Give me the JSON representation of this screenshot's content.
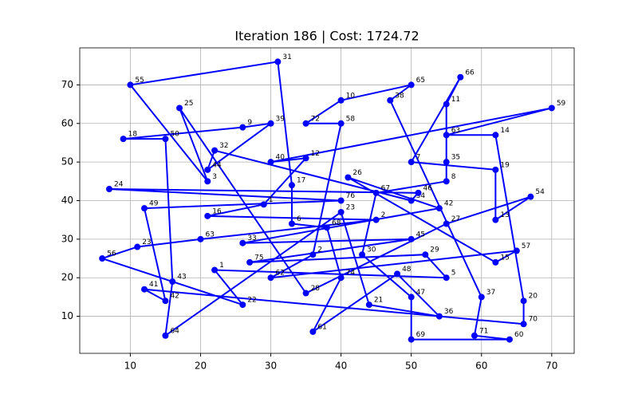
{
  "chart_data": {
    "type": "route",
    "title": "Iteration 186 | Cost: 1724.72",
    "x": [
      31,
      33,
      33,
      38,
      40,
      36,
      48,
      54,
      44,
      40,
      15,
      16,
      15,
      9,
      26,
      30,
      21,
      22,
      50,
      51,
      7,
      40,
      12,
      15,
      12,
      66,
      66,
      62,
      55,
      70,
      30,
      35,
      29,
      21,
      45,
      20,
      11,
      6,
      26,
      22,
      55,
      52,
      27,
      50,
      26,
      54,
      41,
      62,
      65,
      30,
      36,
      40,
      35,
      40,
      50,
      47,
      60,
      59,
      64,
      50,
      50,
      43,
      45,
      55,
      55,
      55,
      57,
      50,
      62,
      62,
      67,
      55,
      35,
      17,
      21,
      10
    ],
    "values": [
      76,
      44,
      34,
      33,
      20,
      6,
      21,
      10,
      13,
      37,
      5,
      19,
      56,
      56,
      59,
      60,
      48,
      53,
      40,
      42,
      43,
      40,
      38,
      14,
      17,
      8,
      14,
      57,
      57,
      64,
      50,
      51,
      39,
      36,
      35,
      30,
      28,
      25,
      13,
      22,
      20,
      26,
      24,
      30,
      29,
      38,
      46,
      24,
      27,
      20,
      26,
      60,
      60,
      66,
      70,
      66,
      15,
      5,
      4,
      4,
      15,
      26,
      42,
      45,
      50,
      65,
      72,
      50,
      48,
      35,
      41,
      34,
      16,
      64,
      45,
      70
    ],
    "labels": [
      "31",
      "17",
      "6",
      "68",
      "74",
      "61",
      "48",
      "36",
      "21",
      "23",
      "64",
      "43",
      "50",
      "18",
      "9",
      "39",
      "44",
      "32",
      "34",
      "46",
      "24",
      "76",
      "49",
      "42",
      "41",
      "70",
      "20",
      "14",
      "63",
      "59",
      "40",
      "12",
      "1",
      "16",
      "2",
      "63",
      "23",
      "56",
      "22",
      "1",
      "5",
      "29",
      "75",
      "45",
      "33",
      "42",
      "26",
      "15",
      "57",
      "62",
      "2",
      "58",
      "72",
      "10",
      "65",
      "38",
      "37",
      "71",
      "60",
      "69",
      "47",
      "30",
      "67",
      "8",
      "35",
      "11",
      "66",
      "7",
      "19",
      "13",
      "54",
      "27",
      "28",
      "25",
      "3",
      "55"
    ],
    "color": "#0000ff",
    "closed": true,
    "xlim": [
      2.8,
      73.2
    ],
    "ylim": [
      0.4,
      79.6
    ],
    "xticks": [
      10,
      20,
      30,
      40,
      50,
      60,
      70
    ],
    "yticks": [
      10,
      20,
      30,
      40,
      50,
      60,
      70
    ],
    "grid": true
  }
}
